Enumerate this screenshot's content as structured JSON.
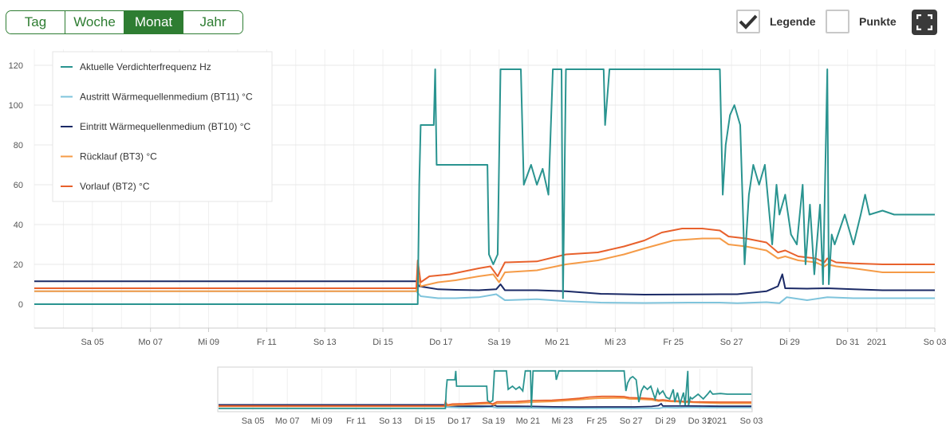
{
  "periods": {
    "tag": "Tag",
    "woche": "Woche",
    "monat": "Monat",
    "jahr": "Jahr",
    "selected": "Monat"
  },
  "options": {
    "legend_label": "Legende",
    "legend_checked": true,
    "points_label": "Punkte",
    "points_checked": false
  },
  "icons": {
    "checkmark": "check-icon",
    "fullscreen": "fullscreen-icon"
  },
  "chart_data": {
    "type": "line",
    "x_unit": "day",
    "x_ticks": [
      "Sa 05",
      "Mo 07",
      "Mi 09",
      "Fr 11",
      "So 13",
      "Di 15",
      "Do 17",
      "Sa 19",
      "Mo 21",
      "Mi 23",
      "Fr 25",
      "So 27",
      "Di 29",
      "Do 31",
      "2021",
      "So 03"
    ],
    "x_tick_values": [
      5,
      7,
      9,
      11,
      13,
      15,
      17,
      19,
      21,
      23,
      25,
      27,
      29,
      31,
      32,
      34
    ],
    "xlim": [
      3.0,
      34.0
    ],
    "y_ticks": [
      "0",
      "20",
      "40",
      "60",
      "80",
      "100",
      "120"
    ],
    "ylim": [
      -12,
      128
    ],
    "grid": true,
    "legend_position": "top-left",
    "series": [
      {
        "name": "Aktuelle Verdichterfrequenz Hz",
        "color": "#2a9490",
        "points": [
          [
            3.0,
            0
          ],
          [
            16.2,
            0
          ],
          [
            16.25,
            60
          ],
          [
            16.3,
            90
          ],
          [
            16.75,
            90
          ],
          [
            16.8,
            118
          ],
          [
            16.85,
            70
          ],
          [
            18.6,
            70
          ],
          [
            18.65,
            25
          ],
          [
            18.8,
            20
          ],
          [
            18.95,
            25
          ],
          [
            19.05,
            118
          ],
          [
            19.75,
            118
          ],
          [
            19.85,
            60
          ],
          [
            20.1,
            70
          ],
          [
            20.3,
            60
          ],
          [
            20.5,
            68
          ],
          [
            20.7,
            55
          ],
          [
            20.85,
            118
          ],
          [
            21.15,
            118
          ],
          [
            21.2,
            3
          ],
          [
            21.3,
            118
          ],
          [
            22.6,
            118
          ],
          [
            22.65,
            90
          ],
          [
            22.8,
            118
          ],
          [
            26.6,
            118
          ],
          [
            26.7,
            55
          ],
          [
            26.8,
            80
          ],
          [
            26.95,
            95
          ],
          [
            27.1,
            100
          ],
          [
            27.3,
            90
          ],
          [
            27.45,
            20
          ],
          [
            27.6,
            55
          ],
          [
            27.75,
            70
          ],
          [
            27.95,
            60
          ],
          [
            28.15,
            70
          ],
          [
            28.4,
            30
          ],
          [
            28.55,
            60
          ],
          [
            28.65,
            45
          ],
          [
            28.85,
            55
          ],
          [
            29.05,
            35
          ],
          [
            29.25,
            30
          ],
          [
            29.45,
            60
          ],
          [
            29.55,
            20
          ],
          [
            29.7,
            50
          ],
          [
            29.85,
            15
          ],
          [
            30.05,
            50
          ],
          [
            30.15,
            10
          ],
          [
            30.3,
            118
          ],
          [
            30.35,
            10
          ],
          [
            30.45,
            35
          ],
          [
            30.55,
            30
          ],
          [
            30.9,
            45
          ],
          [
            31.2,
            30
          ],
          [
            31.45,
            45
          ],
          [
            31.6,
            55
          ],
          [
            31.75,
            45
          ],
          [
            32.2,
            47
          ],
          [
            32.6,
            45
          ],
          [
            34.0,
            45
          ]
        ]
      },
      {
        "name": "Austritt Wärmequellenmedium (BT11) °C",
        "color": "#7fc4dc",
        "points": [
          [
            3.0,
            6.5
          ],
          [
            16.15,
            6.5
          ],
          [
            16.3,
            4
          ],
          [
            16.9,
            3
          ],
          [
            17.5,
            3
          ],
          [
            18.3,
            3.5
          ],
          [
            18.9,
            5
          ],
          [
            19.2,
            2
          ],
          [
            20.3,
            2.5
          ],
          [
            21.3,
            1.5
          ],
          [
            22.5,
            0.8
          ],
          [
            24.0,
            0.6
          ],
          [
            25.5,
            0.8
          ],
          [
            26.6,
            0.8
          ],
          [
            27.2,
            0.5
          ],
          [
            28.2,
            1
          ],
          [
            28.65,
            0.5
          ],
          [
            28.9,
            3.5
          ],
          [
            29.6,
            2
          ],
          [
            30.3,
            3.5
          ],
          [
            31.2,
            3
          ],
          [
            32.2,
            3
          ],
          [
            34.0,
            3
          ]
        ]
      },
      {
        "name": "Eintritt Wärmequellenmedium (BT10) °C",
        "color": "#1b2a66",
        "points": [
          [
            3.0,
            11.5
          ],
          [
            16.15,
            11.5
          ],
          [
            16.25,
            9
          ],
          [
            16.9,
            7.5
          ],
          [
            17.5,
            7.2
          ],
          [
            18.3,
            7
          ],
          [
            18.9,
            7.5
          ],
          [
            19.05,
            10
          ],
          [
            19.2,
            7
          ],
          [
            20.3,
            7
          ],
          [
            21.3,
            6.5
          ],
          [
            22.5,
            5.2
          ],
          [
            24.0,
            4.8
          ],
          [
            25.5,
            4.9
          ],
          [
            26.6,
            5
          ],
          [
            27.2,
            5
          ],
          [
            28.2,
            6.5
          ],
          [
            28.6,
            9
          ],
          [
            28.75,
            15
          ],
          [
            28.85,
            8
          ],
          [
            29.6,
            7.8
          ],
          [
            30.3,
            8
          ],
          [
            31.2,
            7.5
          ],
          [
            32.2,
            7
          ],
          [
            34.0,
            7
          ]
        ]
      },
      {
        "name": "Rücklauf (BT3) °C",
        "color": "#f59b47",
        "points": [
          [
            3.0,
            6.5
          ],
          [
            16.15,
            6.5
          ],
          [
            16.2,
            15
          ],
          [
            16.3,
            9
          ],
          [
            16.9,
            11
          ],
          [
            17.5,
            12
          ],
          [
            18.3,
            14
          ],
          [
            18.8,
            15
          ],
          [
            19.0,
            11
          ],
          [
            19.2,
            16
          ],
          [
            20.3,
            17
          ],
          [
            21.3,
            20
          ],
          [
            22.4,
            22
          ],
          [
            23.3,
            25
          ],
          [
            24.0,
            28
          ],
          [
            25.0,
            32
          ],
          [
            26.0,
            33
          ],
          [
            26.6,
            33
          ],
          [
            26.9,
            30
          ],
          [
            27.5,
            29
          ],
          [
            28.2,
            27
          ],
          [
            28.6,
            23
          ],
          [
            28.85,
            24
          ],
          [
            29.3,
            22
          ],
          [
            29.9,
            21
          ],
          [
            30.2,
            19
          ],
          [
            30.3,
            20
          ],
          [
            30.6,
            19
          ],
          [
            31.2,
            18
          ],
          [
            32.2,
            16
          ],
          [
            34.0,
            16
          ]
        ]
      },
      {
        "name": "Vorlauf (BT2) °C",
        "color": "#e8612c",
        "points": [
          [
            3.0,
            8
          ],
          [
            16.15,
            8
          ],
          [
            16.2,
            22
          ],
          [
            16.3,
            11
          ],
          [
            16.6,
            14
          ],
          [
            17.3,
            15
          ],
          [
            18.3,
            18
          ],
          [
            18.7,
            19
          ],
          [
            18.95,
            14
          ],
          [
            19.2,
            21
          ],
          [
            20.3,
            21.5
          ],
          [
            21.3,
            25
          ],
          [
            22.4,
            26
          ],
          [
            23.3,
            29
          ],
          [
            24.0,
            32
          ],
          [
            24.6,
            36
          ],
          [
            25.3,
            38
          ],
          [
            26.0,
            38
          ],
          [
            26.6,
            37
          ],
          [
            26.9,
            34
          ],
          [
            27.5,
            33
          ],
          [
            28.2,
            31
          ],
          [
            28.6,
            26
          ],
          [
            28.85,
            27
          ],
          [
            29.3,
            24
          ],
          [
            29.9,
            23
          ],
          [
            30.2,
            21
          ],
          [
            30.3,
            23
          ],
          [
            30.6,
            21
          ],
          [
            31.2,
            20.5
          ],
          [
            32.2,
            20
          ],
          [
            34.0,
            20
          ]
        ]
      }
    ]
  },
  "navigator": {
    "x_ticks": [
      "Sa 05",
      "Mo 07",
      "Mi 09",
      "Fr 11",
      "So 13",
      "Di 15",
      "Do 17",
      "Sa 19",
      "Mo 21",
      "Mi 23",
      "Fr 25",
      "So 27",
      "Di 29",
      "Do 31",
      "2021",
      "So 03"
    ]
  }
}
